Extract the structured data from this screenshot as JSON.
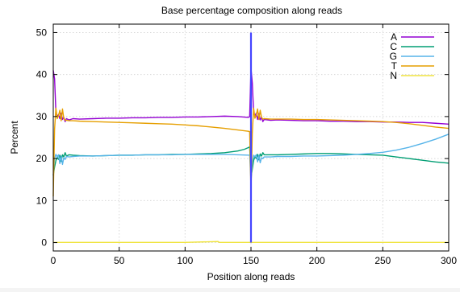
{
  "chart_data": {
    "type": "line",
    "title": "Base percentage composition along reads",
    "xlabel": "Position along reads",
    "ylabel": "Percent",
    "xlim": [
      0,
      300
    ],
    "ylim": [
      -2,
      52
    ],
    "xticks": [
      0,
      50,
      100,
      150,
      200,
      250,
      300
    ],
    "yticks": [
      0,
      10,
      20,
      30,
      40,
      50
    ],
    "grid": true,
    "legend_position": "top-right",
    "marker_line": {
      "x": 150,
      "color": "#4444ff"
    },
    "series": [
      {
        "name": "A",
        "color": "#9400d3",
        "points": [
          [
            0,
            41
          ],
          [
            1,
            39
          ],
          [
            2,
            31
          ],
          [
            3,
            30
          ],
          [
            4,
            30.5
          ],
          [
            5,
            29.5
          ],
          [
            6,
            30.8
          ],
          [
            7,
            29.3
          ],
          [
            8,
            29.8
          ],
          [
            9,
            28.8
          ],
          [
            10,
            29.5
          ],
          [
            12,
            29.2
          ],
          [
            15,
            29.5
          ],
          [
            20,
            29.4
          ],
          [
            30,
            29.5
          ],
          [
            40,
            29.6
          ],
          [
            50,
            29.6
          ],
          [
            60,
            29.7
          ],
          [
            70,
            29.7
          ],
          [
            80,
            29.8
          ],
          [
            90,
            29.8
          ],
          [
            100,
            29.9
          ],
          [
            110,
            29.9
          ],
          [
            120,
            30.0
          ],
          [
            130,
            30.1
          ],
          [
            140,
            30.0
          ],
          [
            148,
            29.8
          ],
          [
            149,
            30.0
          ],
          [
            150,
            41.5
          ],
          [
            151,
            38
          ],
          [
            152,
            31
          ],
          [
            153,
            30.2
          ],
          [
            154,
            30.8
          ],
          [
            155,
            29.3
          ],
          [
            156,
            30.7
          ],
          [
            157,
            29.2
          ],
          [
            158,
            29.8
          ],
          [
            159,
            28.8
          ],
          [
            160,
            29.3
          ],
          [
            165,
            29.1
          ],
          [
            170,
            29.2
          ],
          [
            180,
            29.1
          ],
          [
            190,
            29.0
          ],
          [
            200,
            29.0
          ],
          [
            210,
            28.9
          ],
          [
            220,
            28.9
          ],
          [
            230,
            28.8
          ],
          [
            240,
            28.8
          ],
          [
            250,
            28.7
          ],
          [
            260,
            28.7
          ],
          [
            270,
            28.6
          ],
          [
            280,
            28.6
          ],
          [
            290,
            28.4
          ],
          [
            300,
            28.2
          ]
        ]
      },
      {
        "name": "C",
        "color": "#009e73",
        "points": [
          [
            0,
            16
          ],
          [
            1,
            18
          ],
          [
            2,
            19.5
          ],
          [
            3,
            20.3
          ],
          [
            4,
            19.8
          ],
          [
            5,
            20.8
          ],
          [
            6,
            19.3
          ],
          [
            7,
            20.9
          ],
          [
            8,
            20.4
          ],
          [
            9,
            21.4
          ],
          [
            10,
            20.6
          ],
          [
            12,
            20.9
          ],
          [
            15,
            20.8
          ],
          [
            20,
            20.7
          ],
          [
            30,
            20.6
          ],
          [
            40,
            20.7
          ],
          [
            50,
            20.8
          ],
          [
            60,
            20.8
          ],
          [
            70,
            20.9
          ],
          [
            80,
            20.9
          ],
          [
            90,
            21.0
          ],
          [
            100,
            21.0
          ],
          [
            110,
            21.1
          ],
          [
            120,
            21.2
          ],
          [
            130,
            21.4
          ],
          [
            140,
            21.8
          ],
          [
            145,
            22.2
          ],
          [
            148,
            22.6
          ],
          [
            149,
            22.8
          ],
          [
            150,
            15.5
          ],
          [
            151,
            17.5
          ],
          [
            152,
            19.5
          ],
          [
            153,
            20.5
          ],
          [
            154,
            20
          ],
          [
            155,
            21
          ],
          [
            156,
            19.7
          ],
          [
            157,
            21.1
          ],
          [
            158,
            20.6
          ],
          [
            159,
            21.4
          ],
          [
            160,
            20.9
          ],
          [
            165,
            20.9
          ],
          [
            170,
            20.9
          ],
          [
            180,
            21.0
          ],
          [
            190,
            21.1
          ],
          [
            200,
            21.2
          ],
          [
            210,
            21.2
          ],
          [
            220,
            21.1
          ],
          [
            230,
            21.0
          ],
          [
            240,
            20.9
          ],
          [
            250,
            20.8
          ],
          [
            260,
            20.4
          ],
          [
            270,
            20.0
          ],
          [
            280,
            19.6
          ],
          [
            290,
            19.2
          ],
          [
            300,
            18.9
          ]
        ]
      },
      {
        "name": "G",
        "color": "#56b4e9",
        "points": [
          [
            0,
            16
          ],
          [
            1,
            20
          ],
          [
            2,
            21
          ],
          [
            3,
            20.4
          ],
          [
            4,
            20.9
          ],
          [
            5,
            18.8
          ],
          [
            6,
            20.6
          ],
          [
            7,
            18.6
          ],
          [
            8,
            20.2
          ],
          [
            9,
            19.8
          ],
          [
            10,
            20.5
          ],
          [
            12,
            20.4
          ],
          [
            15,
            20.5
          ],
          [
            20,
            20.6
          ],
          [
            30,
            20.6
          ],
          [
            40,
            20.7
          ],
          [
            50,
            20.8
          ],
          [
            60,
            20.8
          ],
          [
            70,
            20.9
          ],
          [
            80,
            20.9
          ],
          [
            90,
            20.9
          ],
          [
            100,
            21.0
          ],
          [
            110,
            21.0
          ],
          [
            120,
            21.0
          ],
          [
            130,
            21.0
          ],
          [
            140,
            20.9
          ],
          [
            149,
            20.8
          ],
          [
            150,
            14.5
          ],
          [
            151,
            19
          ],
          [
            152,
            20.8
          ],
          [
            153,
            20.4
          ],
          [
            154,
            20.9
          ],
          [
            155,
            19.2
          ],
          [
            156,
            20.8
          ],
          [
            157,
            19.0
          ],
          [
            158,
            20.2
          ],
          [
            159,
            20.0
          ],
          [
            160,
            20.4
          ],
          [
            165,
            20.4
          ],
          [
            170,
            20.5
          ],
          [
            180,
            20.5
          ],
          [
            190,
            20.6
          ],
          [
            200,
            20.6
          ],
          [
            210,
            20.7
          ],
          [
            220,
            20.8
          ],
          [
            230,
            21.0
          ],
          [
            240,
            21.2
          ],
          [
            250,
            21.5
          ],
          [
            260,
            22.0
          ],
          [
            270,
            22.7
          ],
          [
            280,
            23.6
          ],
          [
            290,
            24.6
          ],
          [
            300,
            25.8
          ]
        ]
      },
      {
        "name": "T",
        "color": "#e69f00",
        "points": [
          [
            0,
            11
          ],
          [
            1,
            27
          ],
          [
            2,
            32
          ],
          [
            3,
            29.5
          ],
          [
            4,
            30.2
          ],
          [
            5,
            31.5
          ],
          [
            6,
            29
          ],
          [
            7,
            31.8
          ],
          [
            8,
            29.5
          ],
          [
            9,
            29.2
          ],
          [
            10,
            29.1
          ],
          [
            12,
            29.0
          ],
          [
            15,
            29.0
          ],
          [
            20,
            28.9
          ],
          [
            30,
            28.8
          ],
          [
            40,
            28.7
          ],
          [
            50,
            28.6
          ],
          [
            60,
            28.5
          ],
          [
            70,
            28.4
          ],
          [
            80,
            28.3
          ],
          [
            90,
            28.2
          ],
          [
            100,
            28.0
          ],
          [
            110,
            27.8
          ],
          [
            120,
            27.5
          ],
          [
            130,
            27.2
          ],
          [
            140,
            26.8
          ],
          [
            148,
            26.5
          ],
          [
            149,
            26.4
          ],
          [
            150,
            12
          ],
          [
            151,
            26
          ],
          [
            152,
            32
          ],
          [
            153,
            29.6
          ],
          [
            154,
            30.3
          ],
          [
            155,
            31.8
          ],
          [
            156,
            29.3
          ],
          [
            157,
            31.5
          ],
          [
            158,
            29.8
          ],
          [
            159,
            29.4
          ],
          [
            160,
            29.5
          ],
          [
            165,
            29.4
          ],
          [
            170,
            29.4
          ],
          [
            180,
            29.4
          ],
          [
            190,
            29.3
          ],
          [
            200,
            29.3
          ],
          [
            210,
            29.2
          ],
          [
            220,
            29.1
          ],
          [
            230,
            29.0
          ],
          [
            240,
            28.9
          ],
          [
            250,
            28.8
          ],
          [
            260,
            28.6
          ],
          [
            270,
            28.3
          ],
          [
            280,
            27.9
          ],
          [
            290,
            27.5
          ],
          [
            300,
            27.2
          ]
        ]
      },
      {
        "name": "N",
        "color": "#f0e442",
        "points": [
          [
            0,
            0.05
          ],
          [
            50,
            0.05
          ],
          [
            100,
            0.05
          ],
          [
            125,
            0.25
          ],
          [
            126,
            0.05
          ],
          [
            150,
            0.05
          ],
          [
            200,
            0.05
          ],
          [
            250,
            0.05
          ],
          [
            300,
            0.05
          ]
        ]
      }
    ]
  }
}
